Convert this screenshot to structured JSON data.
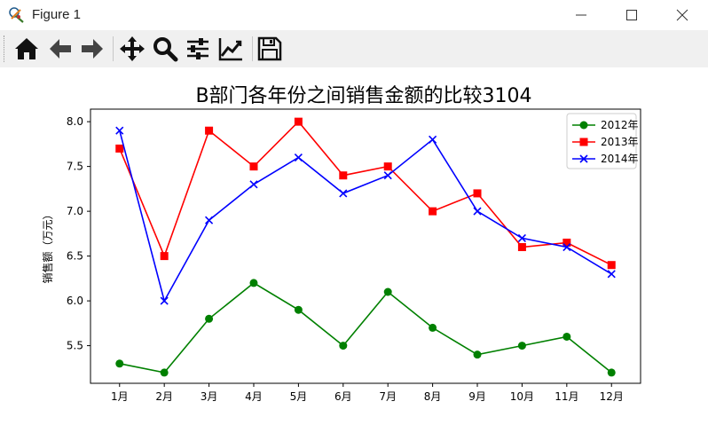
{
  "window": {
    "title": "Figure 1"
  },
  "toolbar": {
    "buttons": [
      {
        "name": "home-button",
        "icon": "home-icon"
      },
      {
        "name": "back-button",
        "icon": "arrow-left-icon"
      },
      {
        "name": "forward-button",
        "icon": "arrow-right-icon"
      },
      {
        "name": "pan-button",
        "icon": "move-icon"
      },
      {
        "name": "zoom-button",
        "icon": "magnifier-icon"
      },
      {
        "name": "subplots-button",
        "icon": "sliders-icon"
      },
      {
        "name": "edit-axis-button",
        "icon": "line-chart-icon"
      },
      {
        "name": "save-button",
        "icon": "floppy-disk-icon"
      }
    ]
  },
  "chart_data": {
    "type": "line",
    "title": "B部门各年份之间销售金额的比较3104",
    "xlabel": "",
    "ylabel": "销售额（万元）",
    "categories": [
      "1月",
      "2月",
      "3月",
      "4月",
      "5月",
      "6月",
      "7月",
      "8月",
      "9月",
      "10月",
      "11月",
      "12月"
    ],
    "ylim": [
      5.08,
      8.14
    ],
    "yticks": [
      5.5,
      6.0,
      6.5,
      7.0,
      7.5,
      8.0
    ],
    "ytick_labels": [
      "5.5",
      "6.0",
      "6.5",
      "7.0",
      "7.5",
      "8.0"
    ],
    "legend_position": "top-right",
    "grid": false,
    "series": [
      {
        "name": "2012年",
        "color": "#008000",
        "marker": "circle",
        "values": [
          5.3,
          5.2,
          5.8,
          6.2,
          5.9,
          5.5,
          6.1,
          5.7,
          5.4,
          5.5,
          5.6,
          5.2
        ]
      },
      {
        "name": "2013年",
        "color": "#ff0000",
        "marker": "square",
        "values": [
          7.7,
          6.5,
          7.9,
          7.5,
          8.0,
          7.4,
          7.5,
          7.0,
          7.2,
          6.6,
          6.65,
          6.4
        ]
      },
      {
        "name": "2014年",
        "color": "#0000ff",
        "marker": "x",
        "values": [
          7.9,
          6.0,
          6.9,
          7.3,
          7.6,
          7.2,
          7.4,
          7.8,
          7.0,
          6.7,
          6.6,
          6.3
        ]
      }
    ]
  }
}
